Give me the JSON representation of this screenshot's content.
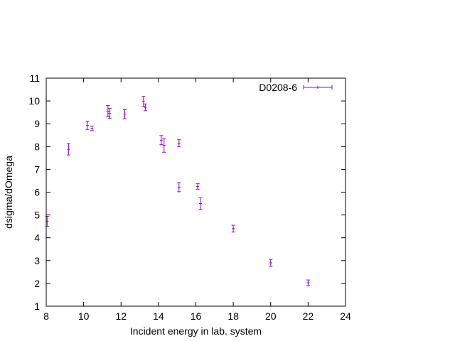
{
  "chart_data": {
    "type": "scatter",
    "title": "",
    "xlabel": "Incident energy in lab. system",
    "ylabel": "dsigma/dOmega",
    "xlim": [
      8,
      24
    ],
    "ylim": [
      1,
      11
    ],
    "xticks": [
      8,
      10,
      12,
      14,
      16,
      18,
      20,
      22,
      24
    ],
    "yticks": [
      1,
      2,
      3,
      4,
      5,
      6,
      7,
      8,
      9,
      10,
      11
    ],
    "grid": false,
    "legend_position": "top-right",
    "series_color": "#9400d3",
    "series": [
      {
        "name": "D0208-6",
        "points": [
          {
            "x": 8.05,
            "y": 4.72,
            "err": 0.22
          },
          {
            "x": 9.2,
            "y": 7.88,
            "err": 0.25
          },
          {
            "x": 10.2,
            "y": 8.93,
            "err": 0.18
          },
          {
            "x": 10.45,
            "y": 8.8,
            "err": 0.1
          },
          {
            "x": 11.3,
            "y": 9.55,
            "err": 0.25
          },
          {
            "x": 11.4,
            "y": 9.45,
            "err": 0.22
          },
          {
            "x": 12.2,
            "y": 9.42,
            "err": 0.2
          },
          {
            "x": 13.2,
            "y": 9.98,
            "err": 0.22
          },
          {
            "x": 13.3,
            "y": 9.72,
            "err": 0.15
          },
          {
            "x": 14.15,
            "y": 8.28,
            "err": 0.2
          },
          {
            "x": 14.3,
            "y": 8.05,
            "err": 0.3
          },
          {
            "x": 15.1,
            "y": 6.22,
            "err": 0.2
          },
          {
            "x": 15.1,
            "y": 8.15,
            "err": 0.15
          },
          {
            "x": 16.1,
            "y": 6.25,
            "err": 0.12
          },
          {
            "x": 16.25,
            "y": 5.5,
            "err": 0.25
          },
          {
            "x": 18.0,
            "y": 4.4,
            "err": 0.15
          },
          {
            "x": 20.0,
            "y": 2.9,
            "err": 0.15
          },
          {
            "x": 22.0,
            "y": 2.03,
            "err": 0.12
          }
        ]
      }
    ]
  }
}
